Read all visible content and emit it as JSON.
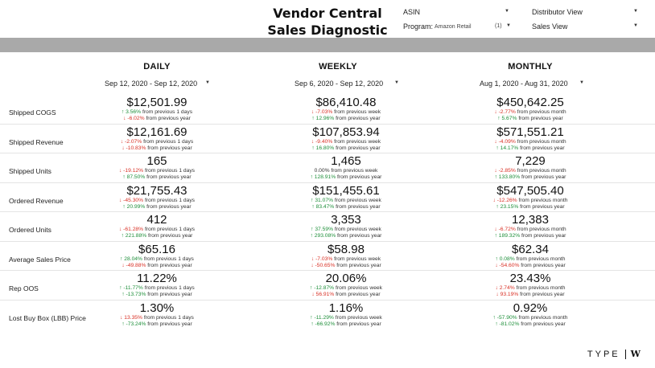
{
  "header": {
    "title_line1": "Vendor Central",
    "title_line2": "Sales Diagnostic",
    "controls": {
      "asin": "ASIN",
      "program_label": "Program:",
      "program_value": "Amazon Retail",
      "program_count": "(1)",
      "distributor": "Distributor View",
      "sales_view": "Sales View"
    }
  },
  "columns": [
    {
      "heading": "DAILY",
      "range": "Sep 12, 2020 - Sep 12, 2020",
      "period": "from previous 1 days"
    },
    {
      "heading": "WEEKLY",
      "range": "Sep 6, 2020 - Sep 12, 2020",
      "period": "from previous week"
    },
    {
      "heading": "MONTHLY",
      "range": "Aug 1, 2020 - Aug 31, 2020",
      "period": "from previous month"
    }
  ],
  "yoy_label": "from previous year",
  "rows": [
    {
      "label": "Shipped COGS",
      "cells": [
        {
          "value": "$12,501.99",
          "d1": {
            "pct": "3.56%",
            "dir": "up"
          },
          "d2": {
            "pct": "-6.02%",
            "dir": "down"
          }
        },
        {
          "value": "$86,410.48",
          "d1": {
            "pct": "-7.03%",
            "dir": "down"
          },
          "d2": {
            "pct": "12.96%",
            "dir": "up"
          }
        },
        {
          "value": "$450,642.25",
          "d1": {
            "pct": "-2.77%",
            "dir": "down"
          },
          "d2": {
            "pct": "5.67%",
            "dir": "up"
          }
        }
      ]
    },
    {
      "label": "Shipped Revenue",
      "cells": [
        {
          "value": "$12,161.69",
          "d1": {
            "pct": "-2.07%",
            "dir": "down"
          },
          "d2": {
            "pct": "-10.83%",
            "dir": "down"
          }
        },
        {
          "value": "$107,853.94",
          "d1": {
            "pct": "-9.40%",
            "dir": "down"
          },
          "d2": {
            "pct": "16.80%",
            "dir": "up"
          }
        },
        {
          "value": "$571,551.21",
          "d1": {
            "pct": "-4.09%",
            "dir": "down"
          },
          "d2": {
            "pct": "14.17%",
            "dir": "up"
          }
        }
      ]
    },
    {
      "label": "Shipped Units",
      "cells": [
        {
          "value": "165",
          "d1": {
            "pct": "-19.12%",
            "dir": "down"
          },
          "d2": {
            "pct": "87.50%",
            "dir": "up"
          }
        },
        {
          "value": "1,465",
          "d1": {
            "pct": "0.00%",
            "dir": "neutral"
          },
          "d2": {
            "pct": "128.91%",
            "dir": "up"
          }
        },
        {
          "value": "7,229",
          "d1": {
            "pct": "-2.85%",
            "dir": "down"
          },
          "d2": {
            "pct": "133.80%",
            "dir": "up"
          }
        }
      ]
    },
    {
      "label": "Ordered Revenue",
      "cells": [
        {
          "value": "$21,755.43",
          "d1": {
            "pct": "-45.30%",
            "dir": "down"
          },
          "d2": {
            "pct": "20.99%",
            "dir": "up"
          }
        },
        {
          "value": "$151,455.61",
          "d1": {
            "pct": "31.07%",
            "dir": "up"
          },
          "d2": {
            "pct": "83.47%",
            "dir": "up"
          }
        },
        {
          "value": "$547,505.40",
          "d1": {
            "pct": "-12.26%",
            "dir": "down"
          },
          "d2": {
            "pct": "23.15%",
            "dir": "up"
          }
        }
      ]
    },
    {
      "label": "Ordered Units",
      "cells": [
        {
          "value": "412",
          "d1": {
            "pct": "-61.28%",
            "dir": "down"
          },
          "d2": {
            "pct": "221.88%",
            "dir": "up"
          }
        },
        {
          "value": "3,353",
          "d1": {
            "pct": "37.59%",
            "dir": "up"
          },
          "d2": {
            "pct": "293.08%",
            "dir": "up"
          }
        },
        {
          "value": "12,383",
          "d1": {
            "pct": "-6.72%",
            "dir": "down"
          },
          "d2": {
            "pct": "189.32%",
            "dir": "up"
          }
        }
      ]
    },
    {
      "label": "Average Sales Price",
      "cells": [
        {
          "value": "$65.16",
          "d1": {
            "pct": "28.04%",
            "dir": "up"
          },
          "d2": {
            "pct": "-49.88%",
            "dir": "down"
          }
        },
        {
          "value": "$58.98",
          "d1": {
            "pct": "-7.03%",
            "dir": "down"
          },
          "d2": {
            "pct": "-50.65%",
            "dir": "down"
          }
        },
        {
          "value": "$62.34",
          "d1": {
            "pct": "0.08%",
            "dir": "up"
          },
          "d2": {
            "pct": "-54.60%",
            "dir": "down"
          }
        }
      ]
    },
    {
      "label": "Rep OOS",
      "cells": [
        {
          "value": "11.22%",
          "d1": {
            "pct": "-11.77%",
            "dir": "up"
          },
          "d2": {
            "pct": "-13.73%",
            "dir": "up"
          }
        },
        {
          "value": "20.06%",
          "d1": {
            "pct": "-12.87%",
            "dir": "up"
          },
          "d2": {
            "pct": "56.91%",
            "dir": "down"
          }
        },
        {
          "value": "23.43%",
          "d1": {
            "pct": "2.74%",
            "dir": "down"
          },
          "d2": {
            "pct": "93.19%",
            "dir": "down"
          }
        }
      ]
    },
    {
      "label": "Lost Buy Box (LBB) Price",
      "cells": [
        {
          "value": "1.30%",
          "d1": {
            "pct": "13.35%",
            "dir": "down"
          },
          "d2": {
            "pct": "-73.24%",
            "dir": "up"
          }
        },
        {
          "value": "1.16%",
          "d1": {
            "pct": "-11.29%",
            "dir": "up"
          },
          "d2": {
            "pct": "-66.92%",
            "dir": "up"
          }
        },
        {
          "value": "0.92%",
          "d1": {
            "pct": "-57.90%",
            "dir": "up"
          },
          "d2": {
            "pct": "-81.02%",
            "dir": "up"
          }
        }
      ]
    }
  ],
  "logo": {
    "text": "TYPE",
    "mark": "W"
  },
  "colors": {
    "positive": "#1e8f3a",
    "negative": "#d93025",
    "band": "#a9a9a9"
  }
}
